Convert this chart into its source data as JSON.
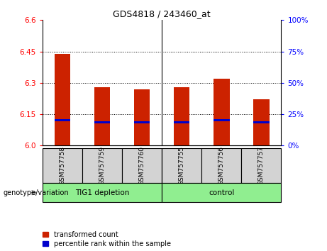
{
  "title": "GDS4818 / 243460_at",
  "samples": [
    "GSM757758",
    "GSM757759",
    "GSM757760",
    "GSM757755",
    "GSM757756",
    "GSM757757"
  ],
  "transformed_counts": [
    6.44,
    6.28,
    6.27,
    6.28,
    6.32,
    6.22
  ],
  "percentile_ranks": [
    6.12,
    6.11,
    6.11,
    6.11,
    6.12,
    6.11
  ],
  "ylim": [
    6.0,
    6.6
  ],
  "yticks_left": [
    6.0,
    6.15,
    6.3,
    6.45,
    6.6
  ],
  "yticks_right": [
    0,
    25,
    50,
    75,
    100
  ],
  "bar_color": "#cc2200",
  "percentile_color": "#0000cc",
  "group1_label": "TIG1 depletion",
  "group2_label": "control",
  "group_color": "#90ee90",
  "sample_box_color": "#d3d3d3",
  "legend_red_label": "transformed count",
  "legend_blue_label": "percentile rank within the sample",
  "xlabel_area": "genotype/variation",
  "bar_width": 0.4,
  "title_fontsize": 9,
  "tick_fontsize": 7.5,
  "label_fontsize": 7.5,
  "legend_fontsize": 7
}
